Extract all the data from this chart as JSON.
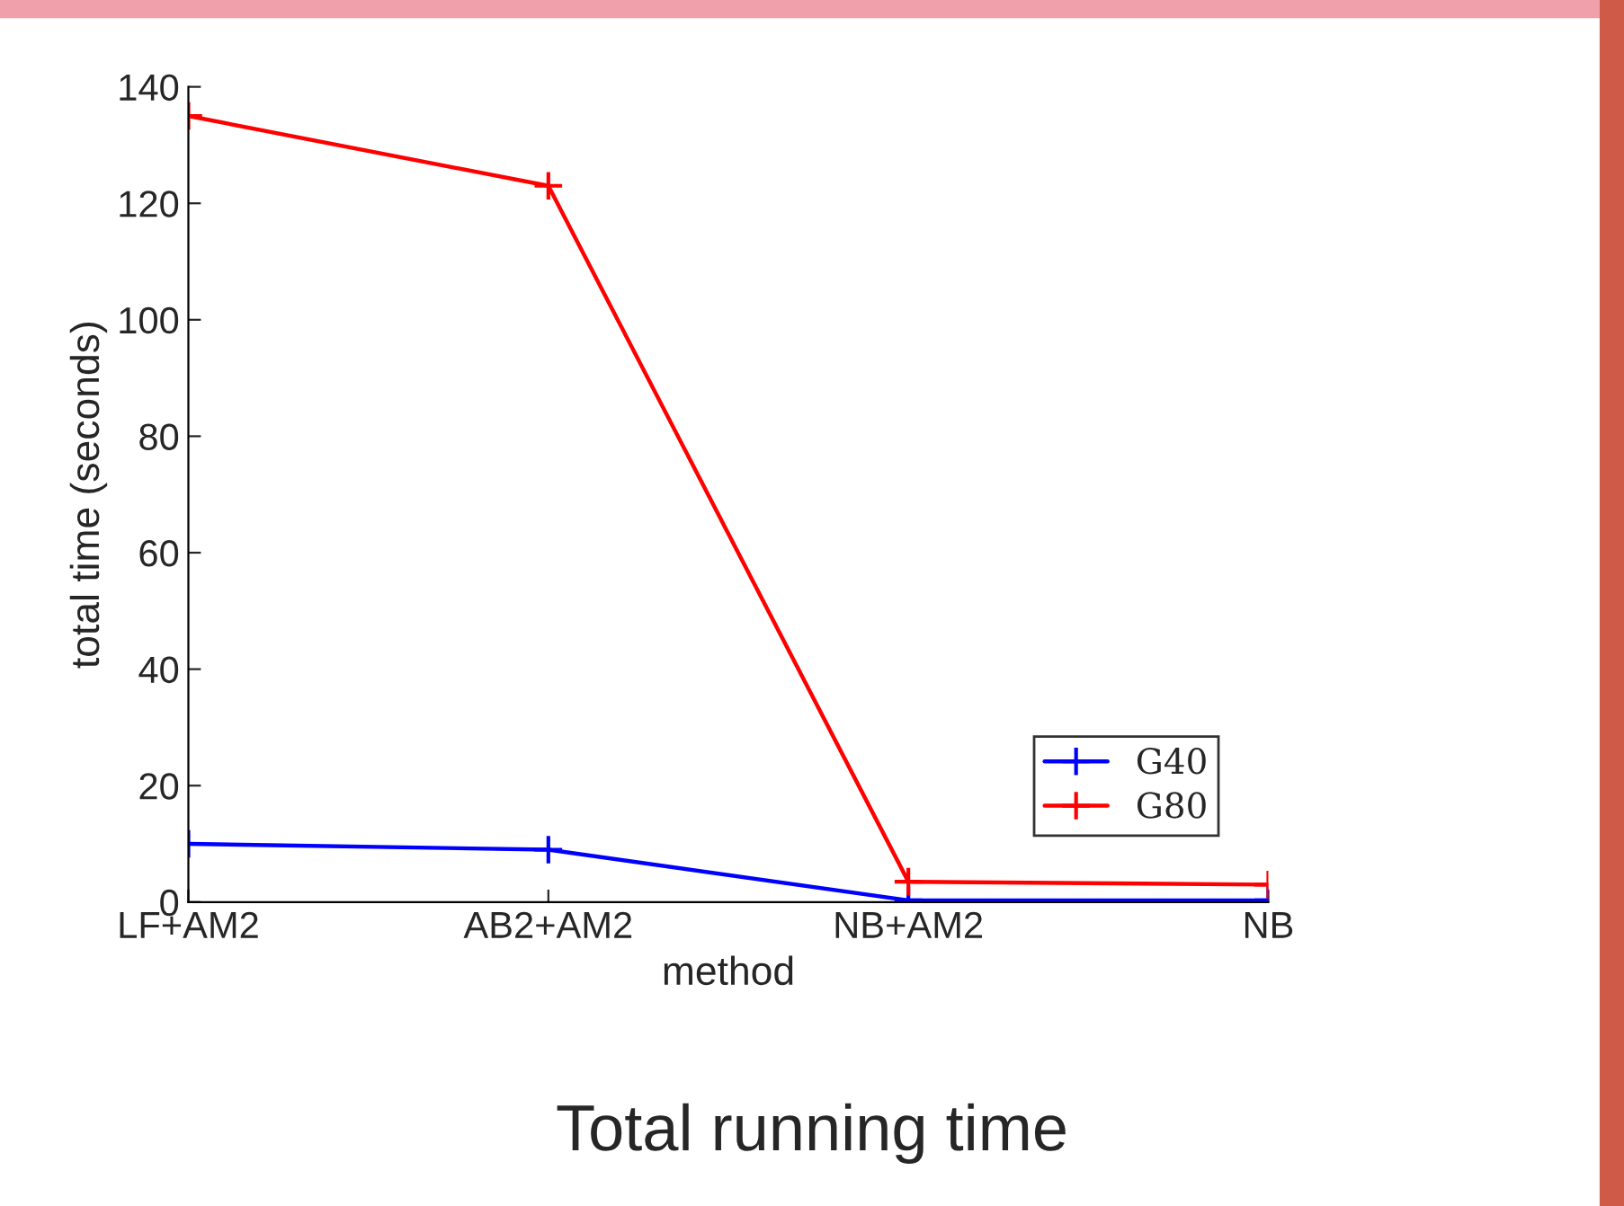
{
  "chart_data": {
    "type": "line",
    "title": "Total running time",
    "xlabel": "method",
    "ylabel": "total time (seconds)",
    "categories": [
      "LF+AM2",
      "AB2+AM2",
      "NB+AM2",
      "NB"
    ],
    "series": [
      {
        "name": "G40",
        "color": "#0000ff",
        "values": [
          10,
          9,
          0.3,
          0.3
        ]
      },
      {
        "name": "G80",
        "color": "#ff0000",
        "values": [
          135,
          123,
          3.5,
          3
        ]
      }
    ],
    "ylim": [
      0,
      140
    ],
    "yticks": [
      0,
      20,
      40,
      60,
      80,
      100,
      120,
      140
    ],
    "marker": "cross",
    "line_style": "solid",
    "legend": "bottom right",
    "grid": false
  }
}
